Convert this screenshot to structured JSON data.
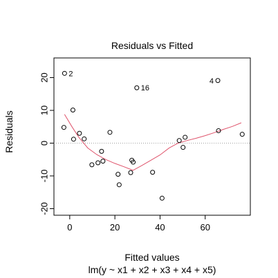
{
  "chart_data": {
    "type": "scatter",
    "title": "Residuals vs Fitted",
    "xlabel": "Fitted values",
    "subtitle": "lm(y ~ x1 + x2 + x3 + x4 + x5)",
    "ylabel": "Residuals",
    "xlim": [
      -7,
      80
    ],
    "ylim": [
      -22,
      26
    ],
    "x_ticks": [
      0,
      20,
      40,
      60
    ],
    "y_ticks": [
      -20,
      -10,
      0,
      10,
      20
    ],
    "x_tick_labels": [
      "0",
      "20",
      "40",
      "60"
    ],
    "y_tick_labels": [
      "-20",
      "-10",
      "0",
      "10",
      "20"
    ],
    "points": [
      {
        "x": -2.3,
        "y": 21.3,
        "label": "2"
      },
      {
        "x": -2.6,
        "y": 4.8,
        "label": ""
      },
      {
        "x": 1.4,
        "y": 10.1,
        "label": ""
      },
      {
        "x": 1.7,
        "y": 1.2,
        "label": ""
      },
      {
        "x": 4.3,
        "y": 3.0,
        "label": ""
      },
      {
        "x": 6.4,
        "y": 1.3,
        "label": ""
      },
      {
        "x": 9.8,
        "y": -6.6,
        "label": ""
      },
      {
        "x": 12.5,
        "y": -6.0,
        "label": ""
      },
      {
        "x": 14.1,
        "y": -2.5,
        "label": ""
      },
      {
        "x": 14.7,
        "y": -5.5,
        "label": ""
      },
      {
        "x": 17.8,
        "y": 3.3,
        "label": ""
      },
      {
        "x": 21.4,
        "y": -9.5,
        "label": ""
      },
      {
        "x": 21.9,
        "y": -12.7,
        "label": ""
      },
      {
        "x": 27.0,
        "y": -9.0,
        "label": ""
      },
      {
        "x": 27.5,
        "y": -5.2,
        "label": ""
      },
      {
        "x": 28.1,
        "y": -5.8,
        "label": ""
      },
      {
        "x": 29.7,
        "y": 16.9,
        "label": "16"
      },
      {
        "x": 36.7,
        "y": -8.9,
        "label": ""
      },
      {
        "x": 40.9,
        "y": -16.8,
        "label": ""
      },
      {
        "x": 48.5,
        "y": 0.8,
        "label": ""
      },
      {
        "x": 50.2,
        "y": -1.3,
        "label": ""
      },
      {
        "x": 51.1,
        "y": 1.8,
        "label": ""
      },
      {
        "x": 65.6,
        "y": 19.1,
        "label": "4"
      },
      {
        "x": 65.9,
        "y": 3.8,
        "label": ""
      },
      {
        "x": 76.4,
        "y": 2.7,
        "label": ""
      }
    ],
    "smoother": {
      "x": [
        -2.3,
        1,
        4,
        8,
        12,
        16,
        20,
        24,
        28,
        32,
        36,
        40,
        44,
        48,
        52,
        56,
        60,
        64,
        68,
        72,
        76
      ],
      "y": [
        8.8,
        5.0,
        1.8,
        -1.5,
        -3.5,
        -5.0,
        -6.2,
        -7.2,
        -8.3,
        -6.8,
        -5.2,
        -3.6,
        -1.5,
        0.0,
        0.8,
        1.5,
        2.3,
        3.2,
        4.2,
        5.1,
        6.2
      ]
    },
    "reference_line_y": 0,
    "colors": {
      "points": "#000000",
      "smoother": "#df536b",
      "reference": "#9e9e9e"
    }
  }
}
